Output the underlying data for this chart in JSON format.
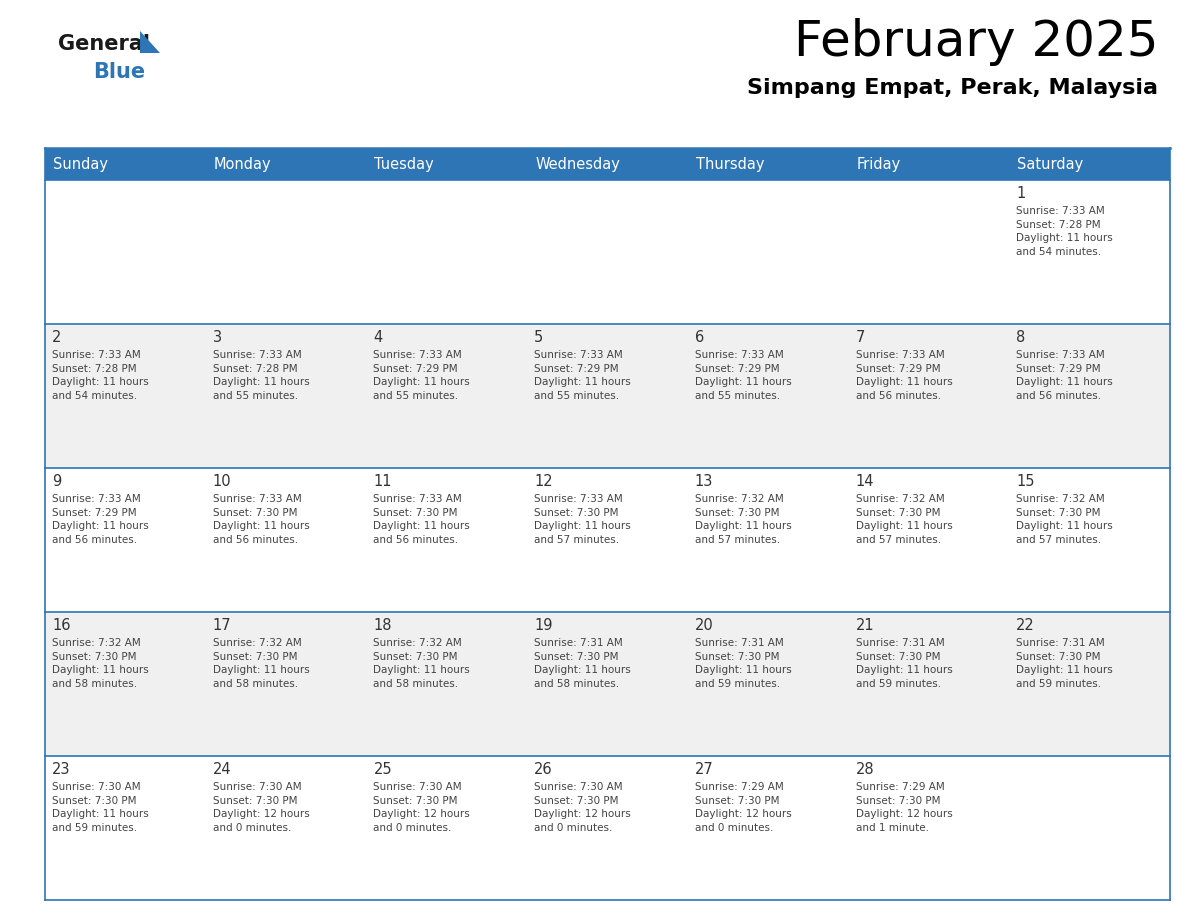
{
  "title": "February 2025",
  "subtitle": "Simpang Empat, Perak, Malaysia",
  "header_bg": "#2E75B6",
  "header_text_color": "#FFFFFF",
  "cell_bg_white": "#FFFFFF",
  "cell_bg_light": "#F0F0F0",
  "day_headers": [
    "Sunday",
    "Monday",
    "Tuesday",
    "Wednesday",
    "Thursday",
    "Friday",
    "Saturday"
  ],
  "days": [
    {
      "day": 1,
      "col": 6,
      "row": 0,
      "sunrise": "7:33 AM",
      "sunset": "7:28 PM",
      "daylight": "11 hours\nand 54 minutes."
    },
    {
      "day": 2,
      "col": 0,
      "row": 1,
      "sunrise": "7:33 AM",
      "sunset": "7:28 PM",
      "daylight": "11 hours\nand 54 minutes."
    },
    {
      "day": 3,
      "col": 1,
      "row": 1,
      "sunrise": "7:33 AM",
      "sunset": "7:28 PM",
      "daylight": "11 hours\nand 55 minutes."
    },
    {
      "day": 4,
      "col": 2,
      "row": 1,
      "sunrise": "7:33 AM",
      "sunset": "7:29 PM",
      "daylight": "11 hours\nand 55 minutes."
    },
    {
      "day": 5,
      "col": 3,
      "row": 1,
      "sunrise": "7:33 AM",
      "sunset": "7:29 PM",
      "daylight": "11 hours\nand 55 minutes."
    },
    {
      "day": 6,
      "col": 4,
      "row": 1,
      "sunrise": "7:33 AM",
      "sunset": "7:29 PM",
      "daylight": "11 hours\nand 55 minutes."
    },
    {
      "day": 7,
      "col": 5,
      "row": 1,
      "sunrise": "7:33 AM",
      "sunset": "7:29 PM",
      "daylight": "11 hours\nand 56 minutes."
    },
    {
      "day": 8,
      "col": 6,
      "row": 1,
      "sunrise": "7:33 AM",
      "sunset": "7:29 PM",
      "daylight": "11 hours\nand 56 minutes."
    },
    {
      "day": 9,
      "col": 0,
      "row": 2,
      "sunrise": "7:33 AM",
      "sunset": "7:29 PM",
      "daylight": "11 hours\nand 56 minutes."
    },
    {
      "day": 10,
      "col": 1,
      "row": 2,
      "sunrise": "7:33 AM",
      "sunset": "7:30 PM",
      "daylight": "11 hours\nand 56 minutes."
    },
    {
      "day": 11,
      "col": 2,
      "row": 2,
      "sunrise": "7:33 AM",
      "sunset": "7:30 PM",
      "daylight": "11 hours\nand 56 minutes."
    },
    {
      "day": 12,
      "col": 3,
      "row": 2,
      "sunrise": "7:33 AM",
      "sunset": "7:30 PM",
      "daylight": "11 hours\nand 57 minutes."
    },
    {
      "day": 13,
      "col": 4,
      "row": 2,
      "sunrise": "7:32 AM",
      "sunset": "7:30 PM",
      "daylight": "11 hours\nand 57 minutes."
    },
    {
      "day": 14,
      "col": 5,
      "row": 2,
      "sunrise": "7:32 AM",
      "sunset": "7:30 PM",
      "daylight": "11 hours\nand 57 minutes."
    },
    {
      "day": 15,
      "col": 6,
      "row": 2,
      "sunrise": "7:32 AM",
      "sunset": "7:30 PM",
      "daylight": "11 hours\nand 57 minutes."
    },
    {
      "day": 16,
      "col": 0,
      "row": 3,
      "sunrise": "7:32 AM",
      "sunset": "7:30 PM",
      "daylight": "11 hours\nand 58 minutes."
    },
    {
      "day": 17,
      "col": 1,
      "row": 3,
      "sunrise": "7:32 AM",
      "sunset": "7:30 PM",
      "daylight": "11 hours\nand 58 minutes."
    },
    {
      "day": 18,
      "col": 2,
      "row": 3,
      "sunrise": "7:32 AM",
      "sunset": "7:30 PM",
      "daylight": "11 hours\nand 58 minutes."
    },
    {
      "day": 19,
      "col": 3,
      "row": 3,
      "sunrise": "7:31 AM",
      "sunset": "7:30 PM",
      "daylight": "11 hours\nand 58 minutes."
    },
    {
      "day": 20,
      "col": 4,
      "row": 3,
      "sunrise": "7:31 AM",
      "sunset": "7:30 PM",
      "daylight": "11 hours\nand 59 minutes."
    },
    {
      "day": 21,
      "col": 5,
      "row": 3,
      "sunrise": "7:31 AM",
      "sunset": "7:30 PM",
      "daylight": "11 hours\nand 59 minutes."
    },
    {
      "day": 22,
      "col": 6,
      "row": 3,
      "sunrise": "7:31 AM",
      "sunset": "7:30 PM",
      "daylight": "11 hours\nand 59 minutes."
    },
    {
      "day": 23,
      "col": 0,
      "row": 4,
      "sunrise": "7:30 AM",
      "sunset": "7:30 PM",
      "daylight": "11 hours\nand 59 minutes."
    },
    {
      "day": 24,
      "col": 1,
      "row": 4,
      "sunrise": "7:30 AM",
      "sunset": "7:30 PM",
      "daylight": "12 hours\nand 0 minutes."
    },
    {
      "day": 25,
      "col": 2,
      "row": 4,
      "sunrise": "7:30 AM",
      "sunset": "7:30 PM",
      "daylight": "12 hours\nand 0 minutes."
    },
    {
      "day": 26,
      "col": 3,
      "row": 4,
      "sunrise": "7:30 AM",
      "sunset": "7:30 PM",
      "daylight": "12 hours\nand 0 minutes."
    },
    {
      "day": 27,
      "col": 4,
      "row": 4,
      "sunrise": "7:29 AM",
      "sunset": "7:30 PM",
      "daylight": "12 hours\nand 0 minutes."
    },
    {
      "day": 28,
      "col": 5,
      "row": 4,
      "sunrise": "7:29 AM",
      "sunset": "7:30 PM",
      "daylight": "12 hours\nand 1 minute."
    }
  ],
  "n_rows": 5,
  "n_cols": 7,
  "line_color": "#2E75B6",
  "text_color_day": "#333333",
  "text_color_info": "#444444",
  "logo_general_color": "#1a1a1a",
  "logo_blue_color": "#2E75B6",
  "fig_width": 11.88,
  "fig_height": 9.18,
  "dpi": 100
}
